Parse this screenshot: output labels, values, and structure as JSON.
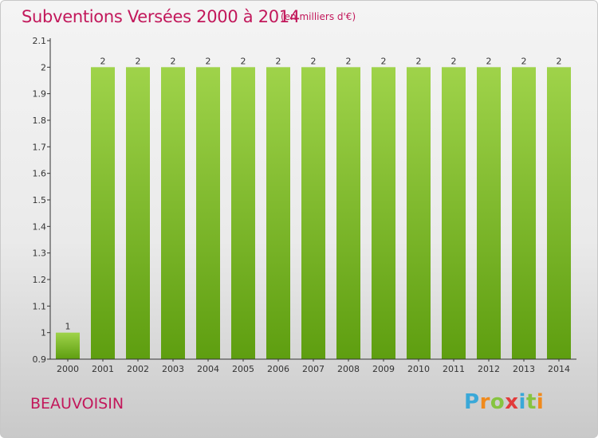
{
  "header": {
    "title": "Subventions Versées 2000 à 2014",
    "unit": "(en milliers d'€)"
  },
  "footer": {
    "commune": "BEAUVOISIN",
    "logo_text": "Proxiti"
  },
  "colors": {
    "title": "#c2185b",
    "bar_light": "#9fd34a",
    "bar_dark": "#5e9e10",
    "axis": "#333333"
  },
  "chart_data": {
    "type": "bar",
    "categories": [
      "2000",
      "2001",
      "2002",
      "2003",
      "2004",
      "2005",
      "2006",
      "2007",
      "2008",
      "2009",
      "2010",
      "2011",
      "2012",
      "2013",
      "2014"
    ],
    "values": [
      1,
      2,
      2,
      2,
      2,
      2,
      2,
      2,
      2,
      2,
      2,
      2,
      2,
      2,
      2
    ],
    "data_labels": [
      "1",
      "2",
      "2",
      "2",
      "2",
      "2",
      "2",
      "2",
      "2",
      "2",
      "2",
      "2",
      "2",
      "2",
      "2"
    ],
    "y_ticks": [
      "0.9",
      "1",
      "1.1",
      "1.2",
      "1.3",
      "1.4",
      "1.5",
      "1.6",
      "1.7",
      "1.8",
      "1.9",
      "2",
      "2.1"
    ],
    "ylim": [
      0.9,
      2.1
    ],
    "grid": false,
    "legend": "none",
    "title": "Subventions Versées 2000 à 2014",
    "xlabel": "",
    "ylabel": ""
  }
}
